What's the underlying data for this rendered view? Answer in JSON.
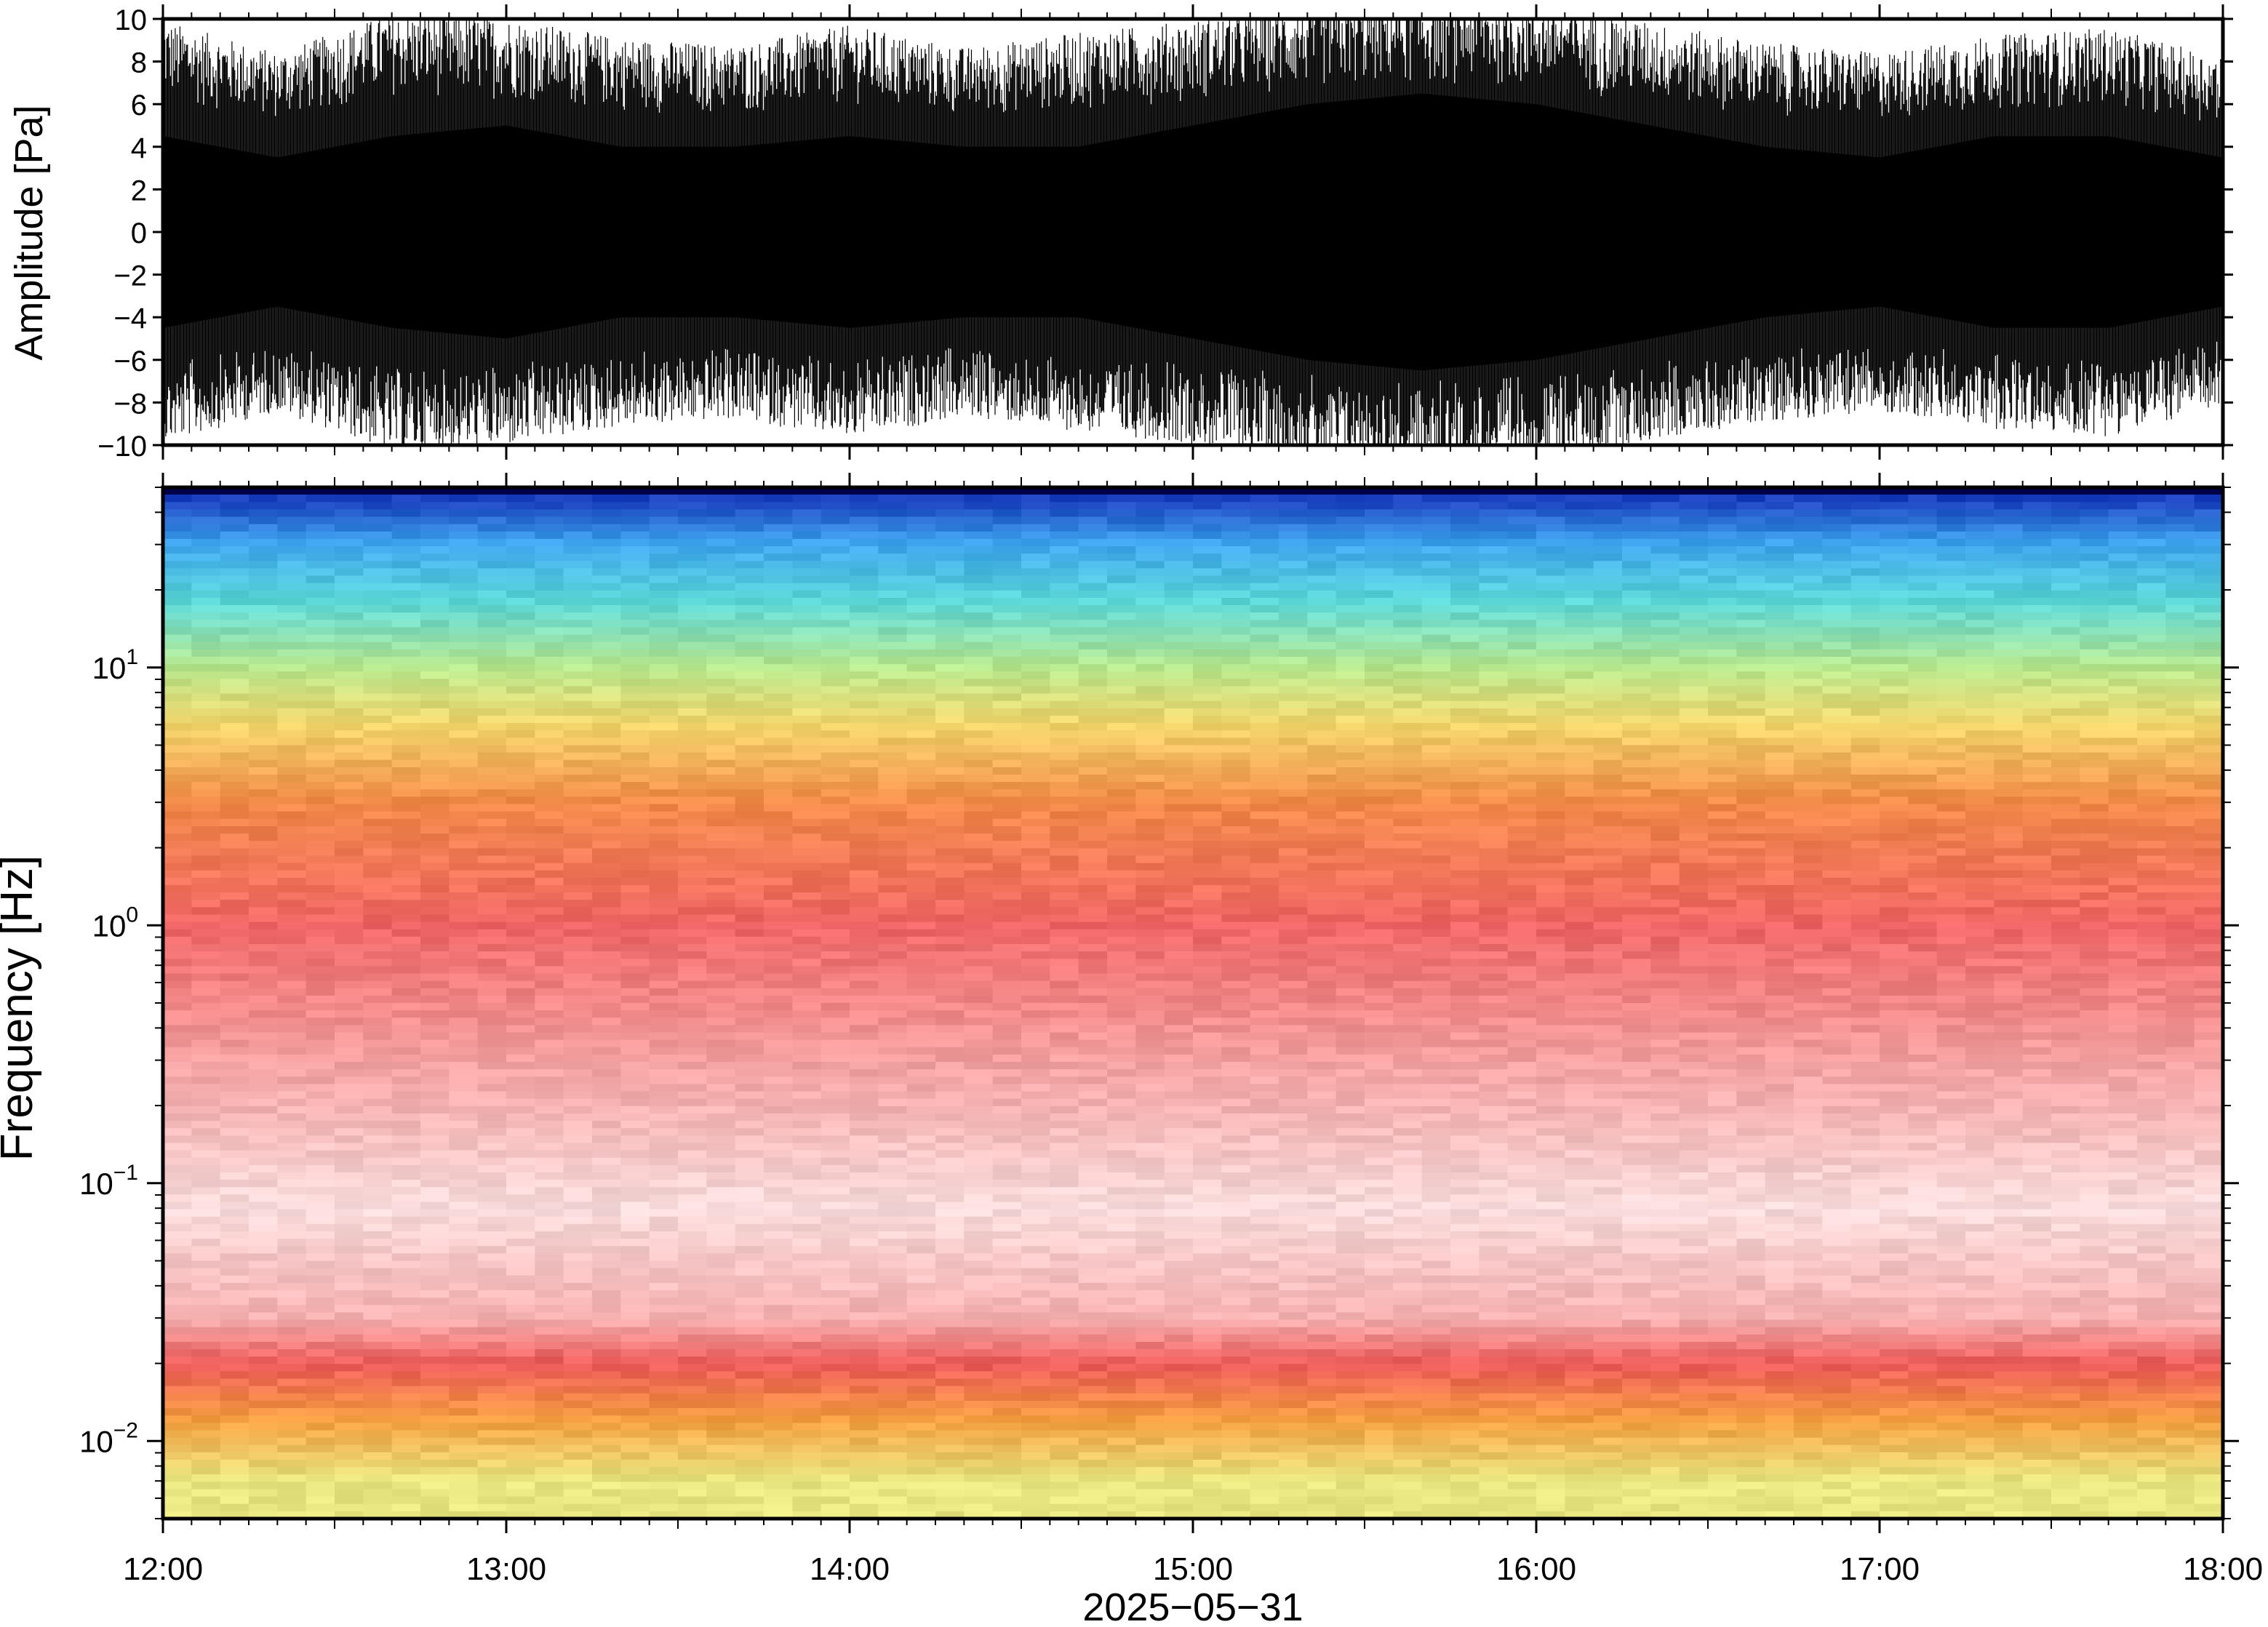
{
  "chart_data": [
    {
      "type": "line",
      "panel": "waveform",
      "ylabel": "Amplitude [Pa]",
      "ylim": [
        -10,
        10
      ],
      "yticks": [
        10,
        8,
        6,
        4,
        2,
        0,
        -2,
        -4,
        -6,
        -8,
        -10
      ],
      "ytick_labels": [
        "10",
        "8",
        "6",
        "4",
        "2",
        "0",
        "−2",
        "−4",
        "−6",
        "−8",
        "−10"
      ],
      "xlim": [
        "12:00",
        "18:00"
      ],
      "envelope": {
        "x": [
          "12:00",
          "12:20",
          "12:40",
          "13:00",
          "13:20",
          "13:40",
          "14:00",
          "14:20",
          "14:40",
          "15:00",
          "15:20",
          "15:40",
          "16:00",
          "16:20",
          "16:40",
          "17:00",
          "17:20",
          "17:40",
          "18:00"
        ],
        "typical_peak": [
          8.5,
          7.2,
          8.8,
          8.6,
          7.8,
          7.5,
          8.3,
          7.4,
          8.0,
          8.5,
          9.2,
          9.6,
          9.3,
          8.4,
          7.6,
          7.2,
          7.9,
          8.2,
          7.0
        ],
        "quiet_band": [
          4.5,
          3.5,
          4.5,
          5.0,
          4.0,
          4.0,
          4.5,
          4.0,
          4.0,
          5.0,
          6.0,
          6.5,
          6.0,
          5.0,
          4.0,
          3.5,
          4.5,
          4.5,
          3.5
        ]
      }
    },
    {
      "type": "heatmap",
      "panel": "spectrogram",
      "ylabel": "Frequency [Hz]",
      "yscale": "log",
      "ylim": [
        0.005,
        50
      ],
      "yticks": [
        0.01,
        0.1,
        1,
        10
      ],
      "ytick_labels": [
        {
          "base": "10",
          "exp": "−2"
        },
        {
          "base": "10",
          "exp": "−1"
        },
        {
          "base": "10",
          "exp": "0"
        },
        {
          "base": "10",
          "exp": "1"
        }
      ],
      "xlim": [
        "12:00",
        "18:00"
      ],
      "xticks": [
        "12:00",
        "13:00",
        "14:00",
        "15:00",
        "16:00",
        "17:00",
        "18:00"
      ],
      "xlabel": "2025−05−31",
      "colormap": [
        "#00004a",
        "#1f5fe0",
        "#4fb6f0",
        "#5fdcd6",
        "#9be6a8",
        "#d8ef90",
        "#f4de6a",
        "#f7a23c",
        "#f06e52",
        "#f4a2a2",
        "#fbe6e6"
      ],
      "dominant_color_by_frequency": [
        {
          "freq_hz": 45,
          "color": "#1a3fbf"
        },
        {
          "freq_hz": 30,
          "color": "#3fa6ee"
        },
        {
          "freq_hz": 18,
          "color": "#5cd8d8"
        },
        {
          "freq_hz": 10,
          "color": "#b8e88e"
        },
        {
          "freq_hz": 6,
          "color": "#f3d66c"
        },
        {
          "freq_hz": 3,
          "color": "#f28a48"
        },
        {
          "freq_hz": 1,
          "color": "#f06666"
        },
        {
          "freq_hz": 0.3,
          "color": "#f3a0a0"
        },
        {
          "freq_hz": 0.08,
          "color": "#f9dcdc"
        },
        {
          "freq_hz": 0.03,
          "color": "#f6b0b0"
        },
        {
          "freq_hz": 0.02,
          "color": "#ec5a5a"
        },
        {
          "freq_hz": 0.012,
          "color": "#f4a040"
        },
        {
          "freq_hz": 0.007,
          "color": "#e8e680"
        }
      ]
    }
  ]
}
